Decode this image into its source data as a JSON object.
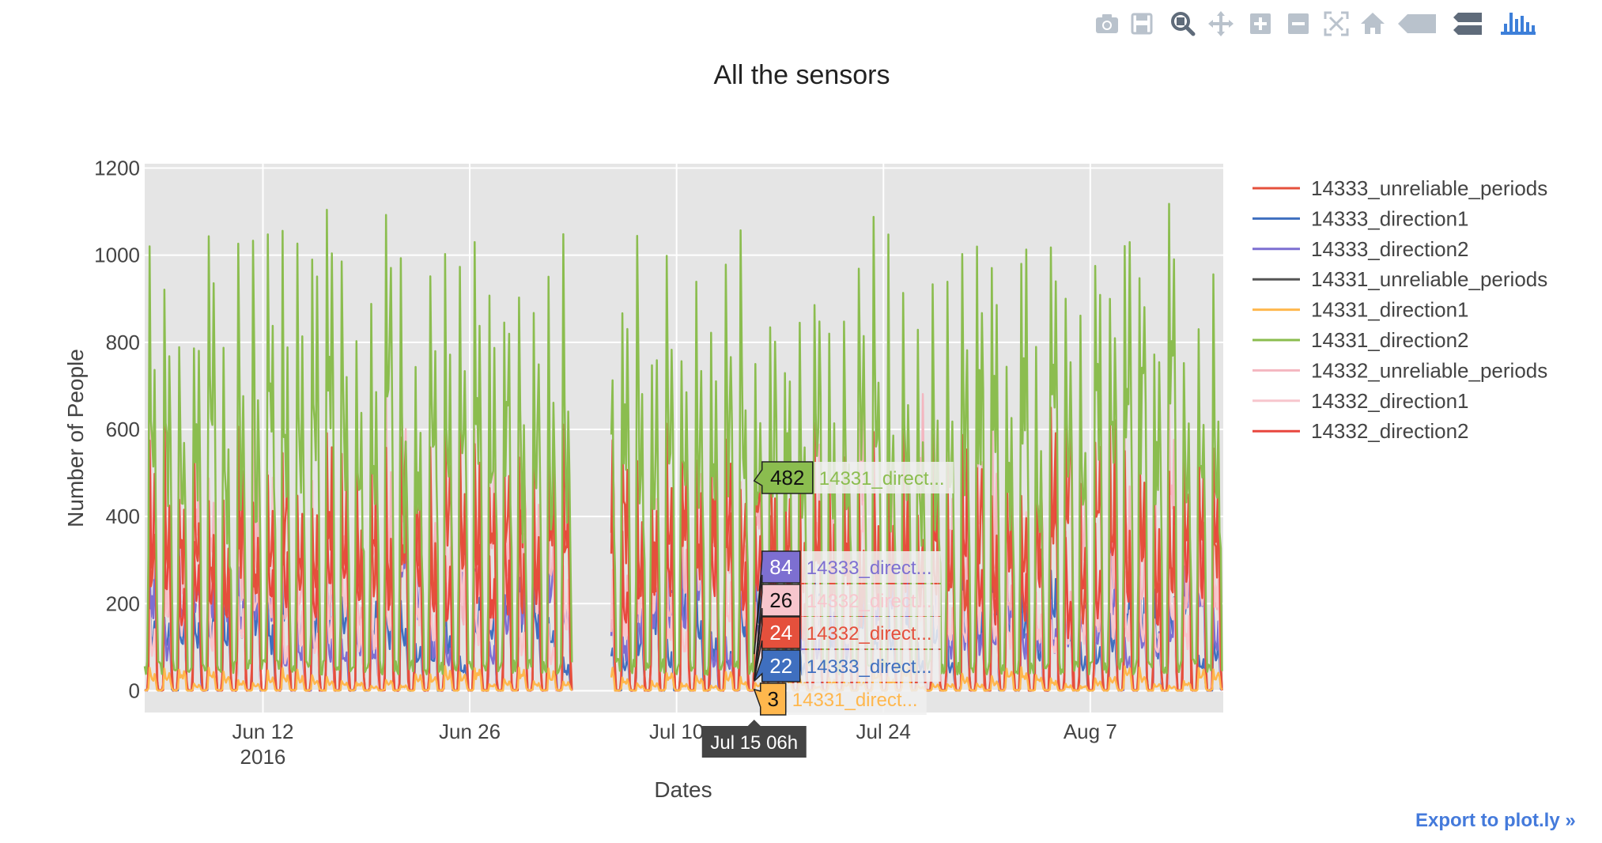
{
  "modebar": {
    "items": [
      {
        "name": "camera-icon",
        "title": "Download plot as a png"
      },
      {
        "name": "save-icon",
        "title": "Save and edit plot in cloud"
      },
      {
        "name": "zoom-icon",
        "title": "Zoom"
      },
      {
        "name": "pan-icon",
        "title": "Pan"
      },
      {
        "name": "zoom-in-icon",
        "title": "Zoom in"
      },
      {
        "name": "zoom-out-icon",
        "title": "Zoom out"
      },
      {
        "name": "autoscale-icon",
        "title": "Autoscale"
      },
      {
        "name": "home-icon",
        "title": "Reset axes"
      },
      {
        "name": "hover-closest-icon",
        "title": "Show closest data on hover"
      },
      {
        "name": "hover-compare-icon",
        "title": "Compare data on hover"
      },
      {
        "name": "plotly-logo-icon",
        "title": "Produced with Plotly"
      }
    ]
  },
  "export_label": "Export to plot.ly »",
  "chart_data": {
    "type": "line",
    "title": "All the sensors",
    "xlabel": "Dates",
    "ylabel": "Number of People",
    "x_range": [
      "2016-06-04",
      "2016-08-16"
    ],
    "ylim": [
      -50,
      1210
    ],
    "x_ticks": [
      {
        "date": "2016-06-12",
        "label": "Jun 12",
        "sublabel": "2016"
      },
      {
        "date": "2016-06-26",
        "label": "Jun 26",
        "sublabel": ""
      },
      {
        "date": "2016-07-10",
        "label": "Jul 10",
        "sublabel": ""
      },
      {
        "date": "2016-07-24",
        "label": "Jul 24",
        "sublabel": ""
      },
      {
        "date": "2016-08-07",
        "label": "Aug 7",
        "sublabel": ""
      }
    ],
    "y_ticks": [
      0,
      200,
      400,
      600,
      800,
      1000,
      1200
    ],
    "grid": true,
    "legend_position": "right",
    "data_gap": [
      "2016-07-03",
      "2016-07-05"
    ],
    "series": [
      {
        "name": "14333_unreliable_periods",
        "color": "#e5503c",
        "daily_peak_range": [
          420,
          700
        ],
        "low": 0
      },
      {
        "name": "14333_direction1",
        "color": "#3f6fbf",
        "daily_peak_range": [
          80,
          320
        ],
        "low": 0
      },
      {
        "name": "14333_direction2",
        "color": "#7d6fd1",
        "daily_peak_range": [
          120,
          420
        ],
        "low": 0
      },
      {
        "name": "14331_unreliable_periods",
        "color": "#555555",
        "daily_peak_range": [
          0,
          0
        ],
        "low": 0
      },
      {
        "name": "14331_direction1",
        "color": "#ffb74d",
        "daily_peak_range": [
          10,
          60
        ],
        "low": 0
      },
      {
        "name": "14331_direction2",
        "color": "#8bbd4f",
        "daily_peak_range": [
          780,
          1140
        ],
        "low": 200
      },
      {
        "name": "14332_unreliable_periods",
        "color": "#f4b6c0",
        "daily_peak_range": [
          300,
          760
        ],
        "low": 0
      },
      {
        "name": "14332_direction1",
        "color": "#f7c6cd",
        "daily_peak_range": [
          150,
          520
        ],
        "low": 0
      },
      {
        "name": "14332_direction2",
        "color": "#e8473e",
        "daily_peak_range": [
          300,
          650
        ],
        "low": 0
      }
    ],
    "hover": {
      "x_label": "Jul 15 06h",
      "x_date": "2016-07-15T06:00",
      "items": [
        {
          "value": "482",
          "series_label": "14331_direct...",
          "color": "#8bbd4f",
          "y": 482
        },
        {
          "value": "84",
          "series_label": "14333_direct...",
          "color": "#7d6fd1",
          "y": 84
        },
        {
          "value": "26",
          "series_label": "14332_direct...",
          "color": "#f7c6cd",
          "y": 26
        },
        {
          "value": "24",
          "series_label": "14332_direct...",
          "color": "#e5503c",
          "y": 24
        },
        {
          "value": "22",
          "series_label": "14333_direct...",
          "color": "#3f6fbf",
          "y": 22
        },
        {
          "value": "3",
          "series_label": "14331_direct...",
          "color": "#ffb74d",
          "y": 3
        }
      ]
    }
  }
}
